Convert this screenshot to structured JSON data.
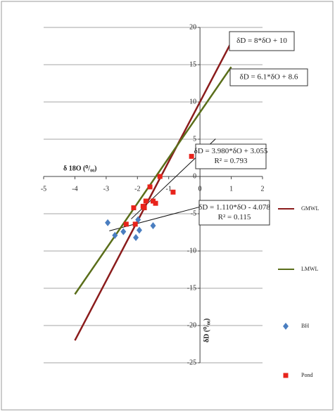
{
  "chart_data": {
    "type": "scatter",
    "x_label": "δ 18O (⁰/₀₀)",
    "y_label": "δD (⁰/₀₀)",
    "xlim": [
      -5,
      2
    ],
    "xticks": [
      -5,
      -4,
      -3,
      -2,
      -1,
      0,
      1,
      2
    ],
    "ylim": [
      -25,
      20
    ],
    "yticks": [
      -25,
      -20,
      -15,
      -10,
      -5,
      0,
      5,
      10,
      15,
      20
    ],
    "grid": true,
    "legend": "right",
    "series": [
      {
        "name": "GMWL",
        "color": "#8b1c1c",
        "style": "line",
        "x": [
          -4,
          1
        ],
        "values": [
          -22,
          18
        ]
      },
      {
        "name": "LMWL",
        "color": "#5a6e1a",
        "style": "line",
        "x": [
          -4,
          1
        ],
        "values": [
          -15.8,
          14.7
        ]
      },
      {
        "name": "BH",
        "color": "#4a7ec0",
        "style": "diamond",
        "x": [
          -2.95,
          -2.72,
          -2.45,
          -1.98,
          -2.05,
          -1.94,
          -1.5
        ],
        "values": [
          -6.2,
          -7.9,
          -7.4,
          -5.8,
          -8.2,
          -7.2,
          -6.6
        ]
      },
      {
        "name": "Pond",
        "color": "#e8231b",
        "style": "square",
        "x": [
          -2.36,
          -2.12,
          -2.07,
          -1.82,
          -1.73,
          -1.78,
          -1.6,
          -1.5,
          -1.42,
          -1.28,
          -0.86,
          -0.27
        ],
        "values": [
          -6.4,
          -4.2,
          -6.4,
          -4.0,
          -3.3,
          -4.2,
          -1.4,
          -3.3,
          -3.6,
          0.0,
          -2.1,
          2.7
        ]
      }
    ],
    "trendlines": [
      {
        "color": "#111111",
        "x": [
          -2.2,
          0.5
        ],
        "values": [
          -5.701,
          5.045
        ]
      },
      {
        "color": "#111111",
        "x": [
          -2.9,
          0.3
        ],
        "values": [
          -7.297,
          -3.745
        ]
      }
    ],
    "annotations": [
      {
        "lines": [
          "δD = 8*δO + 10"
        ]
      },
      {
        "lines": [
          "δD = 6.1*δO + 8.6"
        ]
      },
      {
        "lines": [
          "δD = 3.980*δO + 3.055",
          "R² = 0.793"
        ]
      },
      {
        "lines": [
          "δD = 1.110*δO - 4.078",
          "R² = 0.115"
        ]
      }
    ]
  }
}
